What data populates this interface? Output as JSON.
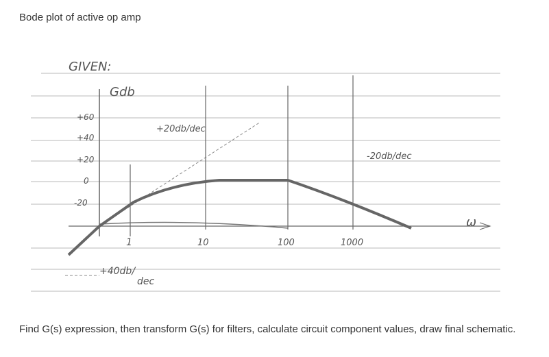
{
  "header": {
    "title": "Bode plot of active op amp"
  },
  "sketch": {
    "given": "GIVEN:",
    "y_label": "Gdb",
    "y_ticks": [
      "+60",
      "+40",
      "+20",
      "0",
      "-20"
    ],
    "x_ticks": [
      "1",
      "10",
      "100",
      "1000"
    ],
    "x_label": "ω",
    "annotations": [
      "+20db/dec",
      "-20db/dec",
      "+40db/",
      "dec"
    ]
  },
  "footer": {
    "text": "Find G(s) expression, then transform G(s) for filters, calculate circuit component values, draw final schematic."
  }
}
